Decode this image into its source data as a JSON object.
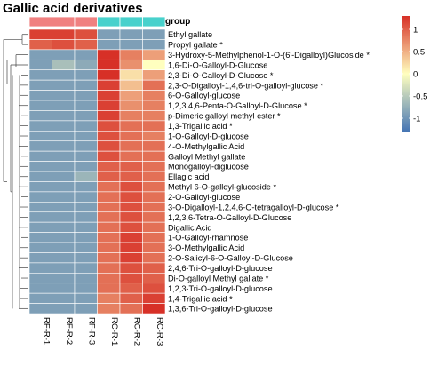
{
  "chart_data": {
    "type": "heatmap",
    "title": "Gallic acid derivatives",
    "annotation_label": "group",
    "columns": [
      "RF-R-1",
      "RF-R-2",
      "RF-R-3",
      "RC-R-1",
      "RC-R-2",
      "RC-R-3"
    ],
    "column_groups": [
      "RF",
      "RF",
      "RF",
      "RC",
      "RC",
      "RC"
    ],
    "group_colors": {
      "RF": "#f08080",
      "RC": "#48d1cc"
    },
    "rows": [
      "Ethyl gallate",
      "Propyl gallate *",
      "3-Hydroxy-5-Methylphenol-1-O-(6'-Digalloyl)Glucoside *",
      "1,6-Di-O-Galloyl-D-Glucose",
      "2,3-Di-O-Galloyl-D-Glucose *",
      "2,3-O-Digalloyl-1,4,6-tri-O-galloyl-glucose *",
      "6-O-Galloyl-glucose",
      "1,2,3,4,6-Penta-O-Galloyl-D-Glucose *",
      "p-Dimeric galloyl methyl ester *",
      "1,3-Trigallic acid *",
      "1-O-Galloyl-D-glucose",
      "4-O-Methylgallic Acid",
      "Galloyl Methyl gallate",
      "Monogalloyl-diglucose",
      "Ellagic acid",
      "Methyl 6-O-galloyl-glucoside *",
      "2-O-Galloyl-glucose",
      "3-O-Digalloyl-1,2,4,6-O-tetragalloyl-D-glucose *",
      "1,2,3,6-Tetra-O-Galloyl-D-Glucose",
      "Digallic Acid",
      "1-O-Galloyl-rhamnose",
      "3-O-Methylgallic Acid",
      "2-O-Salicyl-6-O-Galloyl-D-Glucose",
      "2,4,6-Tri-O-galloyl-D-glucose",
      "Di-O-galloyl Methyl gallate *",
      "1,2,3-Tri-O-galloyl-D-glucose",
      "1,4-Trigallic acid *",
      "1,3,6-Tri-O-galloyl-D-glucose"
    ],
    "values": [
      [
        1.2,
        1.2,
        1.1,
        -0.9,
        -0.9,
        -0.9
      ],
      [
        1.0,
        1.1,
        1.0,
        -0.9,
        -0.9,
        -0.9
      ],
      [
        -0.9,
        -0.9,
        -0.9,
        1.3,
        0.8,
        0.6
      ],
      [
        -0.9,
        -0.6,
        -0.8,
        1.3,
        0.7,
        0.0
      ],
      [
        -0.9,
        -0.9,
        -0.9,
        1.3,
        0.2,
        0.6
      ],
      [
        -0.9,
        -0.9,
        -0.9,
        1.2,
        0.4,
        0.9
      ],
      [
        -0.9,
        -0.9,
        -0.9,
        1.2,
        0.6,
        0.8
      ],
      [
        -0.9,
        -0.9,
        -0.9,
        1.2,
        0.7,
        0.8
      ],
      [
        -0.9,
        -0.9,
        -0.9,
        1.2,
        0.8,
        0.8
      ],
      [
        -0.9,
        -0.9,
        -0.9,
        1.1,
        0.9,
        0.9
      ],
      [
        -0.9,
        -0.9,
        -0.9,
        1.1,
        0.9,
        0.8
      ],
      [
        -0.9,
        -0.9,
        -0.9,
        1.1,
        0.9,
        0.9
      ],
      [
        -0.9,
        -0.9,
        -0.9,
        1.1,
        0.9,
        0.9
      ],
      [
        -0.9,
        -0.9,
        -0.9,
        1.0,
        1.0,
        0.9
      ],
      [
        -0.9,
        -0.9,
        -0.7,
        1.0,
        1.0,
        0.9
      ],
      [
        -0.9,
        -0.9,
        -0.9,
        0.9,
        1.1,
        0.9
      ],
      [
        -0.9,
        -0.9,
        -0.9,
        0.9,
        1.1,
        0.9
      ],
      [
        -0.9,
        -0.9,
        -0.9,
        0.9,
        1.1,
        0.9
      ],
      [
        -0.9,
        -0.9,
        -0.9,
        0.9,
        1.1,
        0.9
      ],
      [
        -0.9,
        -0.9,
        -0.9,
        0.9,
        1.1,
        0.9
      ],
      [
        -0.9,
        -0.9,
        -0.9,
        0.9,
        1.2,
        0.9
      ],
      [
        -0.9,
        -0.9,
        -0.9,
        0.9,
        1.2,
        0.9
      ],
      [
        -0.9,
        -0.9,
        -0.9,
        0.9,
        1.2,
        0.9
      ],
      [
        -0.9,
        -0.9,
        -0.9,
        0.9,
        1.1,
        1.0
      ],
      [
        -0.9,
        -0.9,
        -0.9,
        0.9,
        1.1,
        1.0
      ],
      [
        -0.9,
        -0.9,
        -0.9,
        0.9,
        1.0,
        1.1
      ],
      [
        -0.9,
        -0.9,
        -0.9,
        0.8,
        1.0,
        1.2
      ],
      [
        -0.9,
        -0.9,
        -0.9,
        0.8,
        0.9,
        1.3
      ]
    ],
    "color_scale": {
      "min": -1.3,
      "max": 1.3,
      "low_color": "#4575b4",
      "mid_color": "#ffffbf",
      "high_color": "#d73027",
      "ticks": [
        1,
        0.5,
        0,
        -0.5,
        -1
      ]
    },
    "row_dendrogram": true,
    "legend_position": "right"
  }
}
